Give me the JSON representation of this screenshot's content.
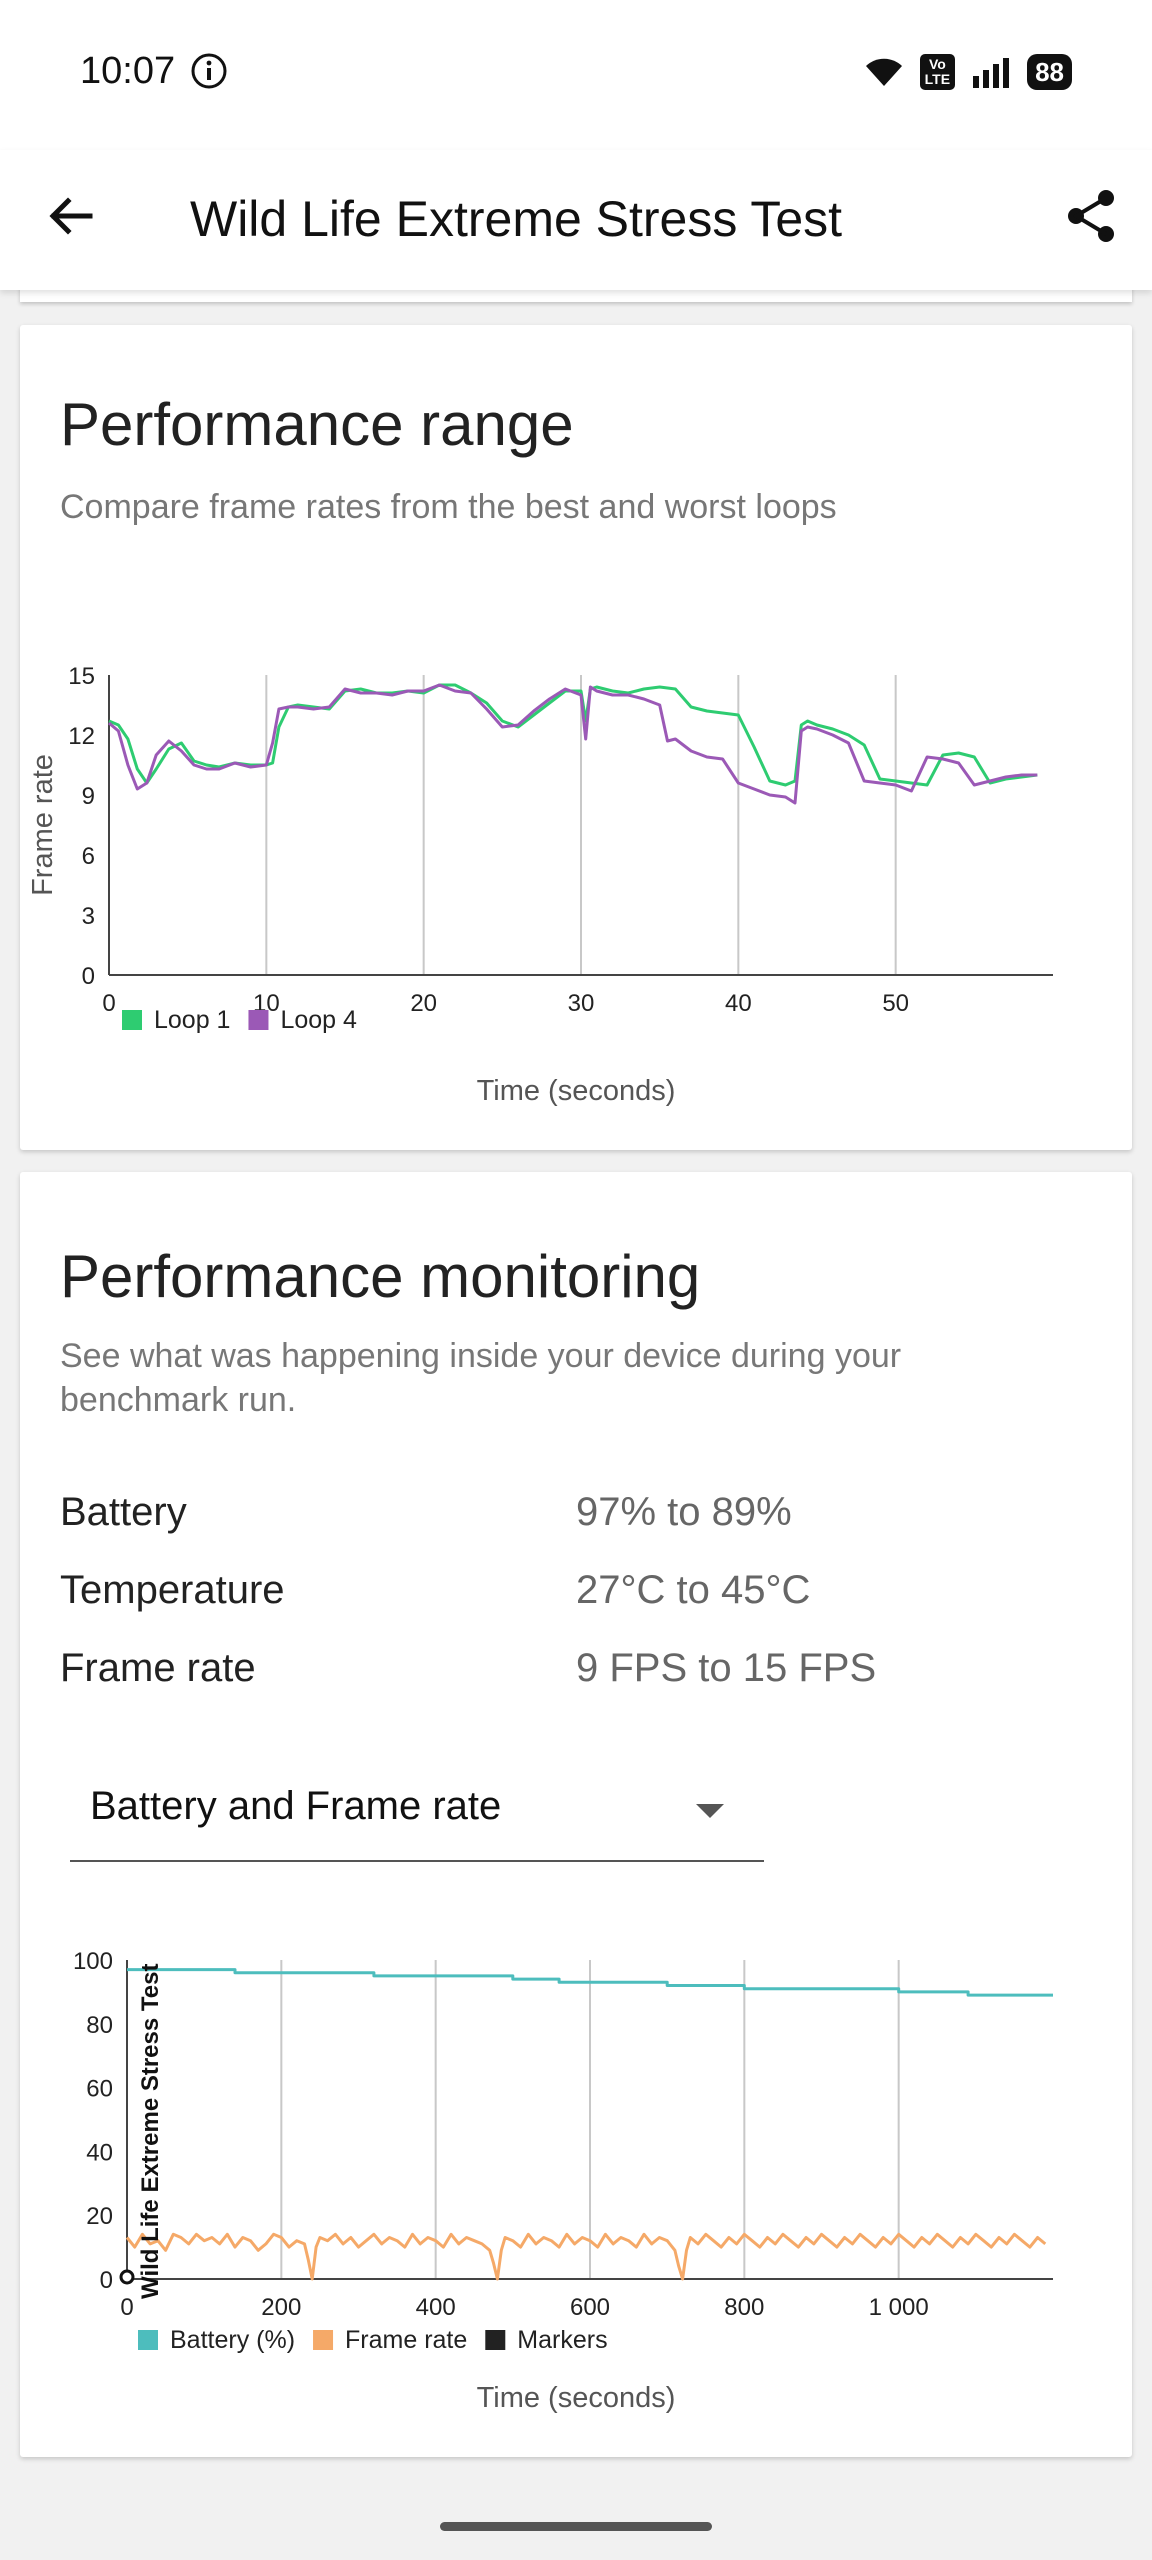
{
  "status": {
    "time": "10:07",
    "battery": "88",
    "network_badge_top": "Vo",
    "network_badge_bottom": "LTE"
  },
  "app_bar": {
    "title": "Wild Life Extreme Stress Test"
  },
  "range_card": {
    "title": "Performance range",
    "subtitle": "Compare frame rates from the best and worst loops",
    "chart_data": {
      "type": "line",
      "title": "",
      "xlabel": "Time (seconds)",
      "ylabel": "Frame rate",
      "xlim": [
        0,
        60
      ],
      "ylim": [
        0,
        15
      ],
      "x_ticks": [
        "0",
        "10",
        "20",
        "30",
        "40",
        "50"
      ],
      "y_ticks": [
        "0",
        "3",
        "6",
        "9",
        "12",
        "15"
      ],
      "legend_position": "bottom-left",
      "series": [
        {
          "name": "Loop 1",
          "color": "#2ecc71",
          "x": [
            0,
            0.6,
            1.2,
            1.8,
            2.4,
            3,
            3.8,
            4.6,
            5.4,
            6.2,
            7,
            8,
            9,
            10,
            10.4,
            10.8,
            11.4,
            12,
            13,
            14,
            15,
            16,
            17,
            18,
            19,
            20,
            21,
            22,
            23,
            24,
            25,
            26,
            27,
            28,
            29,
            30,
            30.3,
            30.6,
            31,
            32,
            33,
            34,
            35,
            36,
            37,
            38,
            39,
            40,
            41,
            42,
            43,
            43.6,
            44,
            44.4,
            45,
            46,
            47,
            48,
            49,
            50,
            51,
            52,
            53,
            54,
            55,
            56,
            57,
            58,
            59
          ],
          "y": [
            12.7,
            12.5,
            11.8,
            10.3,
            9.6,
            10.3,
            11.3,
            11.6,
            10.7,
            10.5,
            10.4,
            10.6,
            10.5,
            10.5,
            10.6,
            12.4,
            13.4,
            13.5,
            13.4,
            13.3,
            14.2,
            14.3,
            14.1,
            14.1,
            14.2,
            14.1,
            14.5,
            14.5,
            14.1,
            13.6,
            12.7,
            12.4,
            13.0,
            13.6,
            14.2,
            14.2,
            12.7,
            14.3,
            14.4,
            14.2,
            14.1,
            14.3,
            14.4,
            14.3,
            13.4,
            13.2,
            13.1,
            13.0,
            11.4,
            9.7,
            9.5,
            9.7,
            12.5,
            12.7,
            12.5,
            12.3,
            12.0,
            11.5,
            9.8,
            9.7,
            9.6,
            9.5,
            11.0,
            11.1,
            10.9,
            9.6,
            9.8,
            9.9,
            10.0
          ]
        },
        {
          "name": "Loop 4",
          "color": "#9b59b6",
          "x": [
            0,
            0.6,
            1.2,
            1.8,
            2.4,
            3,
            3.8,
            4.6,
            5.4,
            6.2,
            7,
            8,
            9,
            10,
            10.4,
            10.8,
            11.4,
            12,
            13,
            14,
            15,
            16,
            17,
            18,
            19,
            20,
            21,
            22,
            23,
            24,
            25,
            26,
            27,
            28,
            29,
            30,
            30.3,
            30.6,
            31,
            32,
            33,
            34,
            35,
            35.5,
            36,
            37,
            38,
            39,
            40,
            41,
            42,
            43,
            43.6,
            44,
            44.4,
            45,
            46,
            47,
            48,
            49,
            50,
            51,
            52,
            53,
            54,
            55,
            56,
            57,
            58,
            59
          ],
          "y": [
            12.6,
            12.2,
            10.5,
            9.3,
            9.6,
            11.0,
            11.7,
            11.2,
            10.5,
            10.3,
            10.3,
            10.6,
            10.4,
            10.5,
            11.6,
            13.3,
            13.4,
            13.4,
            13.3,
            13.4,
            14.3,
            14.1,
            14.1,
            14.0,
            14.2,
            14.2,
            14.5,
            14.2,
            14.1,
            13.3,
            12.4,
            12.5,
            13.2,
            13.8,
            14.3,
            14.0,
            11.8,
            14.4,
            14.2,
            14.0,
            14.0,
            13.8,
            13.5,
            11.7,
            11.8,
            11.2,
            10.9,
            10.8,
            9.6,
            9.3,
            9.0,
            8.9,
            8.6,
            12.2,
            12.4,
            12.3,
            12.0,
            11.6,
            9.7,
            9.6,
            9.5,
            9.2,
            10.9,
            10.8,
            10.6,
            9.5,
            9.7,
            9.9,
            10.0,
            10.0
          ]
        }
      ]
    }
  },
  "monitor_card": {
    "title": "Performance monitoring",
    "subtitle": "See what was happening inside your device during your benchmark run.",
    "stats": [
      {
        "label": "Battery",
        "value": "97% to 89%"
      },
      {
        "label": "Temperature",
        "value": "27°C to 45°C"
      },
      {
        "label": "Frame rate",
        "value": "9 FPS to 15 FPS"
      }
    ],
    "dropdown": {
      "selected": "Battery and Frame rate"
    },
    "chart_data": {
      "type": "line",
      "title": "",
      "xlabel": "Time (seconds)",
      "ylabel": "",
      "xlim": [
        0,
        1200
      ],
      "ylim": [
        0,
        100
      ],
      "x_ticks": [
        "0",
        "200",
        "400",
        "600",
        "800",
        "1 000"
      ],
      "y_ticks": [
        "0",
        "20",
        "40",
        "60",
        "80",
        "100"
      ],
      "legend_position": "bottom-left",
      "marker_label": "Wild Life Extreme Stress Test",
      "marker_x": 30,
      "series": [
        {
          "name": "Battery (%)",
          "color": "#4dbdbd",
          "x": [
            0,
            140,
            140,
            320,
            320,
            500,
            500,
            560,
            560,
            700,
            700,
            800,
            800,
            1000,
            1000,
            1090,
            1090,
            1200
          ],
          "y": [
            97,
            97,
            96,
            96,
            95,
            95,
            94,
            94,
            93,
            93,
            92,
            92,
            91,
            91,
            90,
            90,
            89,
            89
          ]
        },
        {
          "name": "Frame rate",
          "color": "#f5a968",
          "x": [
            0,
            10,
            20,
            30,
            40,
            50,
            60,
            70,
            80,
            90,
            100,
            110,
            120,
            130,
            140,
            150,
            160,
            170,
            180,
            190,
            200,
            210,
            220,
            230,
            235,
            240,
            245,
            250,
            260,
            270,
            280,
            290,
            300,
            310,
            320,
            330,
            340,
            350,
            360,
            370,
            380,
            390,
            400,
            410,
            420,
            430,
            440,
            450,
            460,
            470,
            475,
            480,
            485,
            490,
            500,
            510,
            520,
            530,
            540,
            550,
            560,
            570,
            580,
            590,
            600,
            610,
            620,
            630,
            640,
            650,
            660,
            670,
            680,
            690,
            700,
            710,
            715,
            720,
            725,
            730,
            740,
            750,
            760,
            770,
            780,
            790,
            800,
            810,
            820,
            830,
            840,
            850,
            860,
            870,
            880,
            890,
            900,
            910,
            920,
            930,
            940,
            950,
            960,
            970,
            980,
            990,
            1000,
            1010,
            1020,
            1030,
            1040,
            1050,
            1060,
            1070,
            1080,
            1090,
            1100,
            1110,
            1120,
            1130,
            1140,
            1150,
            1160,
            1170,
            1180,
            1190
          ],
          "y": [
            13,
            10,
            14,
            11,
            12,
            9,
            14,
            13,
            11,
            14,
            12,
            13,
            11,
            14,
            10,
            13,
            12,
            9,
            11,
            14,
            13,
            10,
            12,
            11,
            6,
            0,
            10,
            13,
            12,
            14,
            11,
            13,
            10,
            12,
            14,
            11,
            13,
            12,
            10,
            14,
            11,
            13,
            12,
            10,
            14,
            11,
            13,
            12,
            11,
            9,
            5,
            0,
            9,
            13,
            12,
            10,
            14,
            11,
            13,
            12,
            10,
            14,
            11,
            13,
            12,
            10,
            14,
            11,
            13,
            12,
            10,
            14,
            11,
            13,
            12,
            9,
            4,
            0,
            9,
            13,
            11,
            14,
            12,
            10,
            13,
            11,
            14,
            12,
            10,
            13,
            11,
            14,
            12,
            10,
            13,
            11,
            14,
            12,
            10,
            13,
            11,
            14,
            12,
            10,
            13,
            11,
            14,
            12,
            10,
            13,
            11,
            14,
            12,
            10,
            13,
            11,
            14,
            12,
            10,
            13,
            11,
            14,
            12,
            10,
            13,
            11
          ]
        },
        {
          "name": "Markers",
          "color": "#222222",
          "x": [],
          "y": []
        }
      ]
    }
  }
}
